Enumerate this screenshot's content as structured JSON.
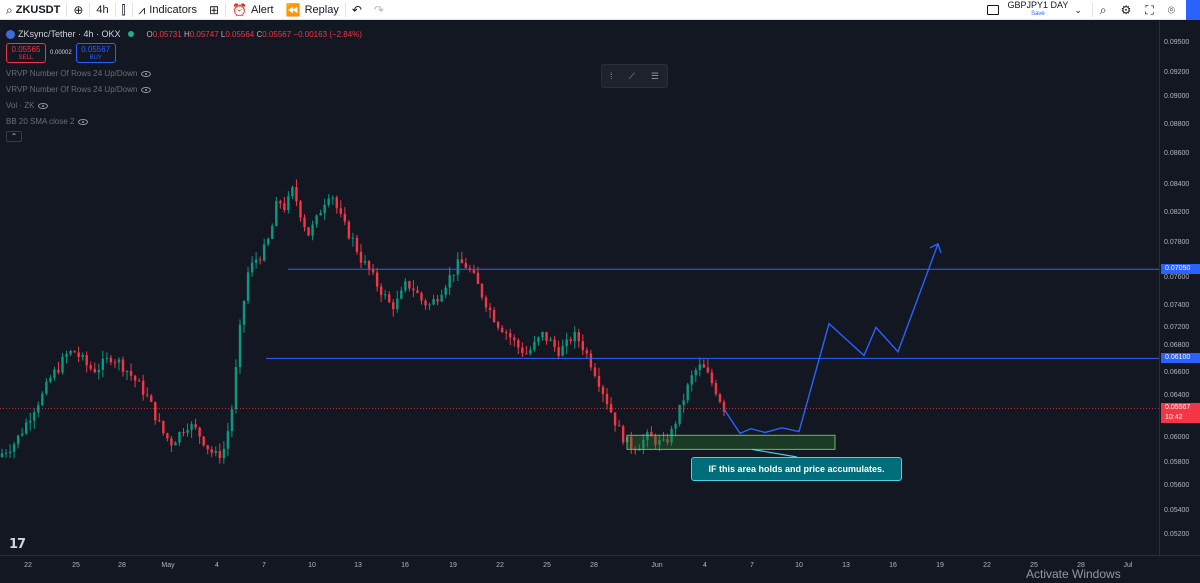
{
  "toolbar": {
    "symbol": "ZKUSDT",
    "interval": "4h",
    "indicators_label": "Indicators",
    "alert_label": "Alert",
    "replay_label": "Replay",
    "layout_name": "GBPJPY1 DAY",
    "layout_status": "Save"
  },
  "legend": {
    "title": "ZKsync/Tether · 4h · OKX",
    "open_label": "O",
    "open": "0.05731",
    "high_label": "H",
    "high": "0.05747",
    "low_label": "L",
    "low": "0.05564",
    "close_label": "C",
    "close": "0.05567",
    "change": "−0.00163 (−2.84%)",
    "sell_price": "0.05565",
    "sell_label": "SELL",
    "spread": "0.00002",
    "buy_price": "0.05567",
    "buy_label": "BUY",
    "indicators": [
      "VRVP Number Of Rows 24 Up/Down",
      "VRVP Number Of Rows 24 Up/Down",
      "Vol · ZK",
      "BB 20 SMA close 2"
    ]
  },
  "price_axis": {
    "ticks": [
      "0.09500",
      "0.09200",
      "0.09000",
      "0.08800",
      "0.08600",
      "0.08400",
      "0.08200",
      "0.07800",
      "0.07600",
      "0.07400",
      "0.07200",
      "0.06800",
      "0.06600",
      "0.06400",
      "0.06300",
      "0.06000",
      "0.05800",
      "0.05600",
      "0.05400",
      "0.05200",
      "0.05000",
      "0.04800",
      "0.04600",
      "0.04440",
      "0.04280",
      "0.04140"
    ],
    "level_upper": "0.07050",
    "level_lower": "0.06100",
    "last_price": "0.05567",
    "countdown": "10:42"
  },
  "time_axis": {
    "ticks": [
      "22",
      "25",
      "28",
      "May",
      "4",
      "7",
      "10",
      "13",
      "16",
      "19",
      "22",
      "25",
      "28",
      "Jun",
      "4",
      "7",
      "10",
      "13",
      "16",
      "19",
      "22",
      "25",
      "28",
      "Jul"
    ]
  },
  "annotation": "IF this area holds and price accumulates.",
  "watermark": "Activate Windows",
  "logo": "17",
  "colors": {
    "bull": "#089981",
    "bear": "#f23645",
    "level_line": "#2962ff",
    "projection": "#2962ff",
    "zone_fill": "#2e7d32",
    "callout_bg": "#006d7a"
  },
  "chart_data": {
    "type": "candlestick",
    "symbol": "ZKsync/Tether",
    "interval": "4h",
    "exchange": "OKX",
    "horizontal_levels": [
      0.0705,
      0.061
    ],
    "support_zone": [
      0.0513,
      0.0528
    ],
    "last_price": 0.05567,
    "projection_path": [
      {
        "x": "Jun 6",
        "y": 0.0556
      },
      {
        "x": "Jun 8",
        "y": 0.053
      },
      {
        "x": "Jun 9",
        "y": 0.0535
      },
      {
        "x": "Jun 10",
        "y": 0.0531
      },
      {
        "x": "Jun 11",
        "y": 0.0536
      },
      {
        "x": "Jun 12",
        "y": 0.0532
      },
      {
        "x": "Jun 14",
        "y": 0.0647
      },
      {
        "x": "Jun 16",
        "y": 0.0613
      },
      {
        "x": "Jun 17",
        "y": 0.0643
      },
      {
        "x": "Jun 19",
        "y": 0.0617
      },
      {
        "x": "Jun 22",
        "y": 0.0732
      }
    ],
    "price_path": [
      0.0505,
      0.0512,
      0.0518,
      0.053,
      0.0545,
      0.056,
      0.0572,
      0.059,
      0.06,
      0.0613,
      0.0618,
      0.061,
      0.06,
      0.0598,
      0.0605,
      0.0612,
      0.0606,
      0.0598,
      0.0588,
      0.0578,
      0.0565,
      0.0545,
      0.0528,
      0.052,
      0.053,
      0.054,
      0.0535,
      0.0525,
      0.0512,
      0.0505,
      0.0515,
      0.056,
      0.064,
      0.07,
      0.0715,
      0.0722,
      0.074,
      0.078,
      0.077,
      0.079,
      0.0765,
      0.0742,
      0.0755,
      0.0775,
      0.079,
      0.0765,
      0.0748,
      0.0735,
      0.0716,
      0.0705,
      0.069,
      0.0678,
      0.0665,
      0.0672,
      0.069,
      0.0684,
      0.0672,
      0.0666,
      0.0675,
      0.0688,
      0.07,
      0.0712,
      0.0708,
      0.0695,
      0.0678,
      0.0662,
      0.0648,
      0.064,
      0.063,
      0.062,
      0.0615,
      0.0625,
      0.0635,
      0.0628,
      0.0618,
      0.0622,
      0.0635,
      0.0628,
      0.0612,
      0.0595,
      0.0575,
      0.0555,
      0.0535,
      0.0522,
      0.0515,
      0.052,
      0.0527,
      0.0522,
      0.0518,
      0.053,
      0.0552,
      0.0575,
      0.0595,
      0.0602,
      0.059,
      0.0575,
      0.0557
    ]
  }
}
